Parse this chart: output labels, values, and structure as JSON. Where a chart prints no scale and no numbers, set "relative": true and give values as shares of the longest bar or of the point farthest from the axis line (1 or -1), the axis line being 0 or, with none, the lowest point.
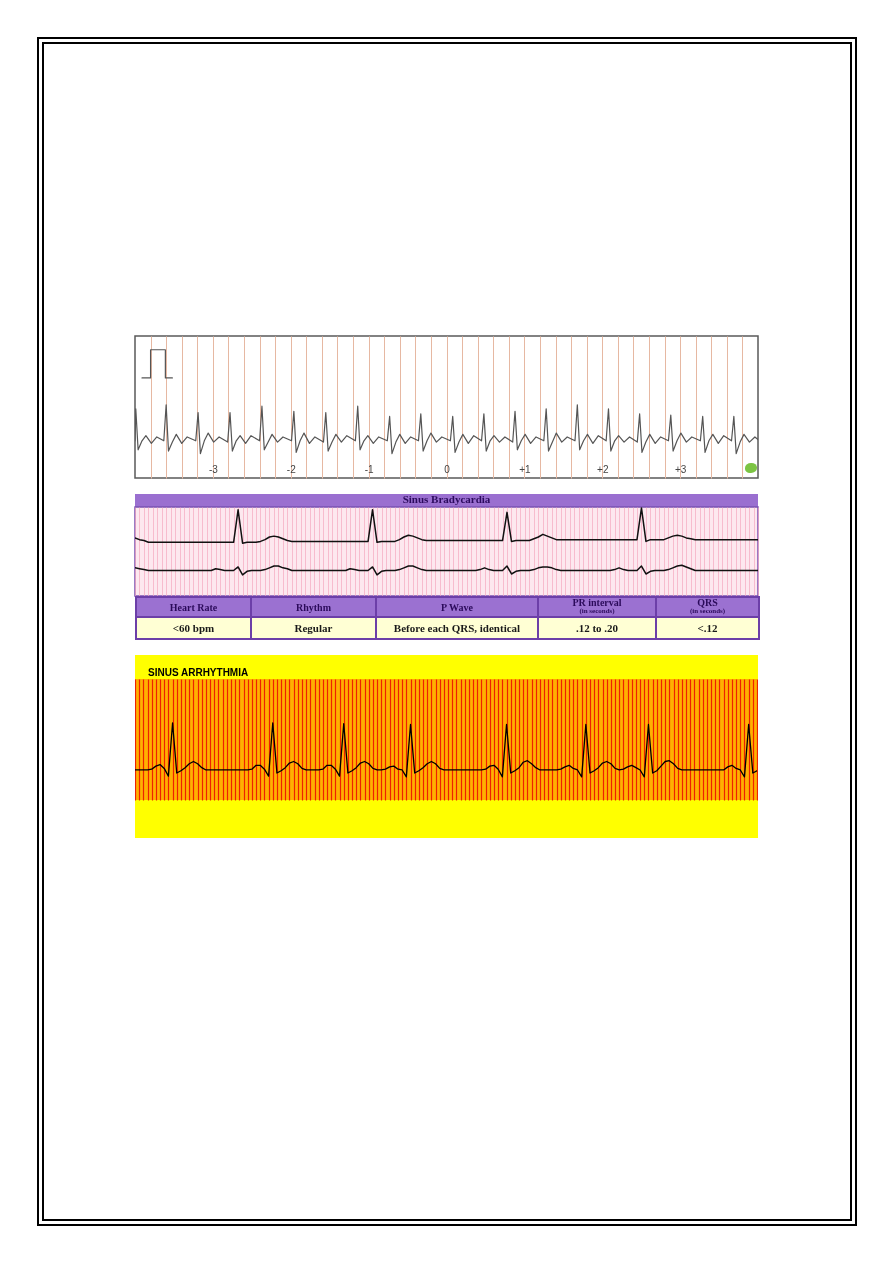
{
  "chart_data": [
    {
      "type": "line",
      "relative": true,
      "xlim": [
        -4,
        4
      ],
      "tick_labels": "x",
      "grid": "x",
      "xticks": [
        {
          "value": -3.8,
          "label": null
        },
        {
          "value": -3.6,
          "label": null
        },
        {
          "value": -3.4,
          "label": null
        },
        {
          "value": -3.2,
          "label": null
        },
        -3,
        {
          "value": -2.8,
          "label": null
        },
        {
          "value": -2.6,
          "label": null
        },
        {
          "value": -2.4,
          "label": null
        },
        {
          "value": -2.2,
          "label": null
        },
        -2,
        {
          "value": -1.8,
          "label": null
        },
        {
          "value": -1.6,
          "label": null
        },
        {
          "value": -1.4,
          "label": null
        },
        {
          "value": -1.2,
          "label": null
        },
        -1,
        {
          "value": -0.8,
          "label": null
        },
        {
          "value": -0.6,
          "label": null
        },
        {
          "value": -0.4,
          "label": null
        },
        {
          "value": -0.2,
          "label": null
        },
        0,
        {
          "value": 0.2,
          "label": null
        },
        {
          "value": 0.4,
          "label": null
        },
        {
          "value": 0.6,
          "label": null
        },
        {
          "value": 0.8,
          "label": null
        },
        {
          "value": 1,
          "label": "+1"
        },
        {
          "value": 1.2,
          "label": null
        },
        {
          "value": 1.4,
          "label": null
        },
        {
          "value": 1.6,
          "label": null
        },
        {
          "value": 1.8,
          "label": null
        },
        {
          "value": 2,
          "label": "+2"
        },
        {
          "value": 2.2,
          "label": null
        },
        {
          "value": 2.4,
          "label": null
        },
        {
          "value": 2.6,
          "label": null
        },
        {
          "value": 2.8,
          "label": null
        },
        {
          "value": 3,
          "label": "+3"
        },
        {
          "value": 3.2,
          "label": null
        },
        {
          "value": 3.4,
          "label": null
        },
        {
          "value": 3.6,
          "label": null
        },
        {
          "value": 3.8,
          "label": null
        }
      ],
      "series": [
        {
          "color": "#555555",
          "x": [
            -4,
            -3.99,
            -3.96,
            -3.91,
            -3.86,
            -3.79,
            -3.72,
            -3.63,
            -3.6,
            -3.57,
            -3.52,
            -3.47,
            -3.4,
            -3.33,
            -3.22,
            -3.19,
            -3.16,
            -3.11,
            -3.06,
            -2.99,
            -2.92,
            -2.81,
            -2.78,
            -2.75,
            -2.7,
            -2.65,
            -2.58,
            -2.51,
            -2.4,
            -2.37,
            -2.34,
            -2.29,
            -2.24,
            -2.17,
            -2.1,
            -1.99,
            -1.96,
            -1.93,
            -1.88,
            -1.83,
            -1.76,
            -1.69,
            -1.58,
            -1.55,
            -1.52,
            -1.47,
            -1.42,
            -1.35,
            -1.28,
            -1.17,
            -1.14,
            -1.11,
            -1.06,
            -1.01,
            -0.94,
            -0.87,
            -0.76,
            -0.73,
            -0.7,
            -0.65,
            -0.6,
            -0.53,
            -0.46,
            -0.36,
            -0.33,
            -0.3,
            -0.25,
            -0.2,
            -0.13,
            -0.06,
            0.05,
            0.08,
            0.11,
            0.16,
            0.21,
            0.28,
            0.35,
            0.45,
            0.48,
            0.51,
            0.56,
            0.61,
            0.68,
            0.75,
            0.85,
            0.88,
            0.91,
            0.96,
            1.01,
            1.08,
            1.15,
            1.25,
            1.28,
            1.31,
            1.36,
            1.41,
            1.48,
            1.55,
            1.65,
            1.68,
            1.71,
            1.76,
            1.81,
            1.88,
            1.95,
            2.05,
            2.08,
            2.11,
            2.16,
            2.21,
            2.28,
            2.35,
            2.45,
            2.48,
            2.51,
            2.56,
            2.61,
            2.68,
            2.75,
            2.85,
            2.88,
            2.91,
            2.96,
            3.01,
            3.08,
            3.15,
            3.26,
            3.29,
            3.32,
            3.37,
            3.42,
            3.49,
            3.56,
            3.66,
            3.69,
            3.72,
            3.77,
            3.82,
            3.89,
            3.96,
            4
          ],
          "values": [
            0.29,
            0.54,
            0.22,
            0.29,
            0.33,
            0.27,
            0.32,
            0.29,
            0.57,
            0.21,
            0.28,
            0.34,
            0.27,
            0.32,
            0.29,
            0.51,
            0.19,
            0.29,
            0.35,
            0.28,
            0.32,
            0.28,
            0.51,
            0.21,
            0.29,
            0.33,
            0.27,
            0.33,
            0.29,
            0.56,
            0.22,
            0.28,
            0.34,
            0.28,
            0.32,
            0.29,
            0.52,
            0.2,
            0.29,
            0.35,
            0.27,
            0.32,
            0.28,
            0.51,
            0.21,
            0.28,
            0.34,
            0.28,
            0.33,
            0.29,
            0.56,
            0.22,
            0.29,
            0.33,
            0.27,
            0.32,
            0.29,
            0.48,
            0.19,
            0.28,
            0.34,
            0.27,
            0.32,
            0.29,
            0.5,
            0.21,
            0.29,
            0.35,
            0.28,
            0.32,
            0.29,
            0.48,
            0.2,
            0.28,
            0.34,
            0.27,
            0.33,
            0.29,
            0.5,
            0.21,
            0.29,
            0.33,
            0.28,
            0.32,
            0.28,
            0.52,
            0.22,
            0.29,
            0.34,
            0.27,
            0.32,
            0.29,
            0.54,
            0.21,
            0.28,
            0.35,
            0.28,
            0.32,
            0.29,
            0.57,
            0.22,
            0.29,
            0.34,
            0.27,
            0.33,
            0.29,
            0.54,
            0.21,
            0.29,
            0.33,
            0.28,
            0.32,
            0.28,
            0.5,
            0.2,
            0.28,
            0.34,
            0.27,
            0.32,
            0.29,
            0.49,
            0.21,
            0.29,
            0.35,
            0.28,
            0.32,
            0.29,
            0.48,
            0.2,
            0.29,
            0.34,
            0.27,
            0.33,
            0.29,
            0.48,
            0.19,
            0.28,
            0.34,
            0.28,
            0.32,
            0.3
          ]
        },
        {
          "color": "#555555",
          "x": [
            -3.91,
            -3.8,
            -3.8,
            -3.61,
            -3.61,
            -3.52
          ],
          "values": [
            0.78,
            0.78,
            1,
            1,
            0.78,
            0.78
          ]
        }
      ]
    },
    {
      "type": "line",
      "relative": true,
      "title": "Sinus Bradycardia",
      "grid": "x",
      "categories": [
        null,
        null,
        null,
        null,
        null,
        null,
        null,
        null,
        null,
        null,
        null,
        null,
        null,
        null,
        null,
        null,
        null,
        null,
        null,
        null,
        null,
        null,
        null,
        null,
        null,
        null,
        null,
        null,
        null,
        null,
        null,
        null,
        null,
        null,
        null,
        null,
        null,
        null,
        null,
        null,
        null,
        null,
        null,
        null,
        null,
        null,
        null,
        null,
        null,
        null,
        null,
        null,
        null,
        null,
        null,
        null,
        null,
        null,
        null,
        null,
        null,
        null,
        null,
        null,
        null,
        null,
        null,
        null,
        null,
        null,
        null,
        null,
        null,
        null,
        null,
        null,
        null,
        null,
        null,
        null,
        null,
        null,
        null,
        null,
        null,
        null,
        null,
        null,
        null,
        null,
        null,
        null,
        null,
        null,
        null,
        null,
        null,
        null,
        null,
        null,
        null,
        null,
        null,
        null,
        null,
        null,
        null,
        null,
        null,
        null,
        null,
        null,
        null,
        null,
        null,
        null,
        null,
        null,
        null,
        null,
        null,
        null,
        null,
        null,
        null,
        null,
        null,
        null,
        null,
        null,
        null,
        null,
        null,
        null,
        null,
        null,
        null,
        null,
        null,
        null
      ],
      "series": [
        {
          "color": "#111111",
          "values": [
            0.66,
            0.64,
            0.63,
            0.61,
            0.61,
            0.61,
            0.61,
            0.61,
            0.61,
            0.61,
            0.61,
            0.61,
            0.61,
            0.61,
            0.61,
            0.61,
            0.61,
            0.61,
            0.61,
            0.61,
            0.61,
            0.61,
            0.61,
            0.98,
            0.6,
            0.61,
            0.61,
            0.61,
            0.62,
            0.64,
            0.67,
            0.68,
            0.67,
            0.65,
            0.63,
            0.62,
            0.62,
            0.62,
            0.62,
            0.62,
            0.62,
            0.62,
            0.62,
            0.62,
            0.62,
            0.62,
            0.62,
            0.62,
            0.62,
            0.62,
            0.62,
            0.62,
            0.62,
            0.98,
            0.61,
            0.62,
            0.62,
            0.62,
            0.62,
            0.64,
            0.67,
            0.69,
            0.68,
            0.66,
            0.64,
            0.63,
            0.63,
            0.63,
            0.63,
            0.63,
            0.63,
            0.63,
            0.63,
            0.63,
            0.63,
            0.63,
            0.63,
            0.63,
            0.63,
            0.63,
            0.63,
            0.63,
            0.63,
            0.95,
            0.62,
            0.63,
            0.63,
            0.63,
            0.63,
            0.65,
            0.67,
            0.7,
            0.68,
            0.66,
            0.64,
            0.64,
            0.64,
            0.64,
            0.64,
            0.64,
            0.64,
            0.64,
            0.64,
            0.64,
            0.64,
            0.64,
            0.64,
            0.64,
            0.64,
            0.64,
            0.64,
            0.64,
            0.64,
            1,
            0.62,
            0.64,
            0.64,
            0.64,
            0.64,
            0.66,
            0.68,
            0.69,
            0.68,
            0.66,
            0.65,
            0.64,
            0.64,
            0.64,
            0.64,
            0.64,
            0.64,
            0.64,
            0.64,
            0.64,
            0.64,
            0.64,
            0.64,
            0.64,
            0.64,
            0.64
          ]
        },
        {
          "color": "#111111",
          "values": [
            0.32,
            0.31,
            0.3,
            0.29,
            0.29,
            0.29,
            0.29,
            0.29,
            0.29,
            0.29,
            0.29,
            0.29,
            0.29,
            0.29,
            0.29,
            0.29,
            0.29,
            0.29,
            0.31,
            0.3,
            0.29,
            0.29,
            0.29,
            0.33,
            0.24,
            0.28,
            0.29,
            0.29,
            0.29,
            0.3,
            0.32,
            0.34,
            0.34,
            0.32,
            0.31,
            0.29,
            0.29,
            0.29,
            0.29,
            0.29,
            0.29,
            0.29,
            0.29,
            0.29,
            0.29,
            0.29,
            0.29,
            0.29,
            0.31,
            0.3,
            0.29,
            0.29,
            0.29,
            0.33,
            0.24,
            0.28,
            0.29,
            0.29,
            0.29,
            0.3,
            0.32,
            0.34,
            0.34,
            0.32,
            0.3,
            0.29,
            0.29,
            0.29,
            0.29,
            0.29,
            0.29,
            0.29,
            0.29,
            0.29,
            0.29,
            0.29,
            0.29,
            0.3,
            0.32,
            0.3,
            0.29,
            0.29,
            0.29,
            0.34,
            0.25,
            0.28,
            0.29,
            0.29,
            0.29,
            0.3,
            0.32,
            0.33,
            0.33,
            0.32,
            0.3,
            0.29,
            0.29,
            0.29,
            0.29,
            0.29,
            0.29,
            0.29,
            0.29,
            0.29,
            0.29,
            0.29,
            0.29,
            0.3,
            0.32,
            0.3,
            0.29,
            0.29,
            0.29,
            0.34,
            0.25,
            0.28,
            0.29,
            0.29,
            0.29,
            0.3,
            0.32,
            0.34,
            0.35,
            0.33,
            0.31,
            0.29,
            0.29,
            0.29,
            0.29,
            0.29,
            0.29,
            0.29,
            0.29,
            0.29,
            0.29,
            0.29,
            0.29,
            0.29,
            0.29,
            0.29
          ]
        }
      ],
      "annotations": [
        "Heart Rate",
        "Rhythm",
        "P Wave",
        "PR interval (in seconds)",
        "QRS (in seconds)",
        "<60 bpm",
        "Regular",
        "Before each QRS, identical",
        ".12 to .20",
        "<.12"
      ]
    },
    {
      "type": "line",
      "relative": true,
      "title": "SINUS ARRHYTHMIA",
      "grid": "x",
      "categories": [
        null,
        null,
        null,
        null,
        null,
        null,
        null,
        null,
        null,
        null,
        null,
        null,
        null,
        null,
        null,
        null,
        null,
        null,
        null,
        null,
        null,
        null,
        null,
        null,
        null,
        null,
        null,
        null,
        null,
        null,
        null,
        null,
        null,
        null,
        null,
        null,
        null,
        null,
        null,
        null,
        null,
        null,
        null,
        null,
        null,
        null,
        null,
        null,
        null,
        null,
        null,
        null,
        null,
        null,
        null,
        null,
        null,
        null,
        null,
        null,
        null,
        null,
        null,
        null,
        null,
        null,
        null,
        null,
        null,
        null,
        null,
        null,
        null,
        null,
        null,
        null,
        null,
        null,
        null,
        null,
        null,
        null,
        null,
        null,
        null,
        null,
        null,
        null,
        null,
        null,
        null,
        null,
        null,
        null,
        null,
        null,
        null,
        null,
        null,
        null,
        null,
        null,
        null,
        null,
        null,
        null,
        null,
        null,
        null,
        null,
        null,
        null,
        null,
        null,
        null,
        null,
        null,
        null,
        null,
        null,
        null,
        null,
        null,
        null,
        null,
        null,
        null,
        null,
        null,
        null,
        null,
        null,
        null,
        null,
        null,
        null,
        null,
        null,
        null,
        null,
        null,
        null,
        null,
        null,
        null,
        null,
        null,
        null,
        null,
        null
      ],
      "series": [
        {
          "color": "#000000",
          "values": [
            0.39,
            0.39,
            0.39,
            0.39,
            0.4,
            0.44,
            0.46,
            0.41,
            0.31,
            1,
            0.35,
            0.38,
            0.42,
            0.47,
            0.5,
            0.47,
            0.42,
            0.39,
            0.39,
            0.39,
            0.39,
            0.39,
            0.39,
            0.39,
            0.39,
            0.39,
            0.39,
            0.39,
            0.4,
            0.45,
            0.45,
            0.4,
            0.31,
            1,
            0.35,
            0.38,
            0.42,
            0.48,
            0.5,
            0.47,
            0.41,
            0.39,
            0.39,
            0.39,
            0.39,
            0.4,
            0.45,
            0.45,
            0.4,
            0.31,
            0.99,
            0.35,
            0.38,
            0.42,
            0.48,
            0.5,
            0.47,
            0.41,
            0.39,
            0.39,
            0.4,
            0.43,
            0.44,
            0.4,
            0.39,
            0.3,
            0.98,
            0.35,
            0.38,
            0.42,
            0.47,
            0.5,
            0.47,
            0.41,
            0.39,
            0.39,
            0.39,
            0.39,
            0.39,
            0.39,
            0.39,
            0.39,
            0.39,
            0.39,
            0.4,
            0.44,
            0.45,
            0.4,
            0.3,
            0.98,
            0.35,
            0.38,
            0.42,
            0.49,
            0.51,
            0.47,
            0.42,
            0.39,
            0.39,
            0.39,
            0.39,
            0.39,
            0.4,
            0.43,
            0.45,
            0.41,
            0.39,
            0.3,
            0.98,
            0.35,
            0.38,
            0.42,
            0.48,
            0.5,
            0.47,
            0.41,
            0.39,
            0.4,
            0.43,
            0.45,
            0.42,
            0.39,
            0.3,
            0.98,
            0.35,
            0.38,
            0.44,
            0.5,
            0.51,
            0.47,
            0.41,
            0.39,
            0.39,
            0.39,
            0.39,
            0.39,
            0.39,
            0.39,
            0.39,
            0.39,
            0.39,
            0.39,
            0.43,
            0.45,
            0.41,
            0.39,
            0.3,
            0.98,
            0.35,
            0.38
          ]
        }
      ]
    }
  ]
}
